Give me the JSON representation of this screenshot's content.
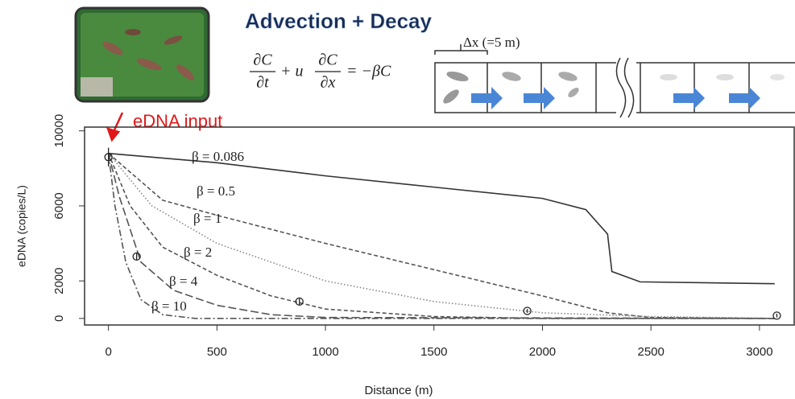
{
  "chart_data": {
    "type": "line",
    "title": "Advection + Decay",
    "equation": {
      "dc1": "∂C",
      "dt": "∂t",
      "mid": "+ u",
      "dc2": "∂C",
      "dx": "∂x",
      "rhs": "= −βC"
    },
    "cell_label": "Δx (=5 m)",
    "annotation": "eDNA input",
    "x_label": "Distance (m)",
    "y_label": "eDNA (copies/L)",
    "xlim": [
      -110,
      3160
    ],
    "ylim": [
      -350,
      10200
    ],
    "xticks": [
      0,
      500,
      1000,
      1500,
      2000,
      2500,
      3000
    ],
    "yticks": [
      0,
      2000,
      6000,
      10000
    ],
    "series": [
      {
        "name": "β = 0.086",
        "color": "#333333",
        "style": "solid",
        "x": [
          0,
          500,
          1000,
          1500,
          2000,
          2200,
          2300,
          2320,
          2450,
          3070
        ],
        "values": [
          8800,
          8300,
          7600,
          7000,
          6400,
          5800,
          4500,
          2500,
          1950,
          1850
        ]
      },
      {
        "name": "β = 0.5",
        "color": "#555555",
        "style": "dashed",
        "x": [
          0,
          250,
          500,
          1000,
          1500,
          2000,
          2300,
          2500,
          3070
        ],
        "values": [
          8800,
          6300,
          5500,
          4000,
          2600,
          1200,
          300,
          50,
          0
        ]
      },
      {
        "name": "β = 1",
        "color": "#888888",
        "style": "dotted",
        "x": [
          0,
          200,
          500,
          1000,
          1500,
          2000,
          2500,
          3070
        ],
        "values": [
          8800,
          6000,
          4000,
          2000,
          900,
          300,
          100,
          0
        ]
      },
      {
        "name": "β = 2",
        "color": "#555555",
        "style": "dashed",
        "x": [
          0,
          100,
          250,
          500,
          750,
          1000,
          1500,
          2000,
          3070
        ],
        "values": [
          8800,
          6000,
          3800,
          2300,
          1200,
          500,
          100,
          0,
          0
        ]
      },
      {
        "name": "β = 4",
        "color": "#555555",
        "style": "longdash",
        "x": [
          0,
          50,
          150,
          300,
          500,
          750,
          1000,
          3070
        ],
        "values": [
          8800,
          6500,
          3000,
          1500,
          700,
          200,
          50,
          0
        ]
      },
      {
        "name": "β = 10",
        "color": "#555555",
        "style": "dashdot",
        "x": [
          0,
          30,
          80,
          150,
          250,
          400,
          3070
        ],
        "values": [
          8800,
          6000,
          3000,
          1000,
          200,
          0,
          0
        ]
      }
    ],
    "observed": {
      "x": [
        0,
        130,
        880,
        1930,
        3080
      ],
      "values": [
        8600,
        3300,
        900,
        400,
        150
      ],
      "errors": [
        500,
        200,
        200,
        100,
        100
      ]
    }
  }
}
